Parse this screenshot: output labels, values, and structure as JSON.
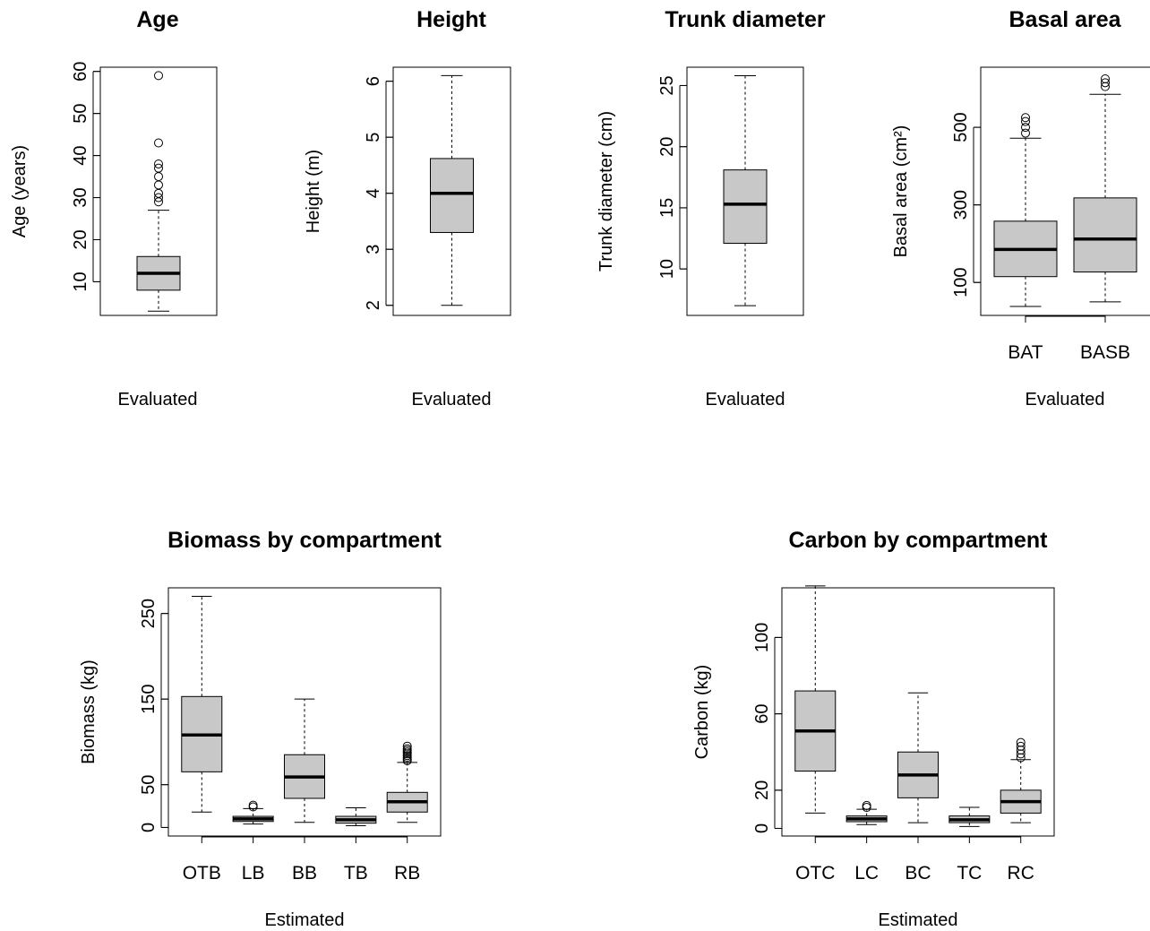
{
  "chart_data": [
    {
      "type": "box",
      "title": "Age",
      "ylabel": "Age (years)",
      "xlabel": "Evaluated",
      "ylim": [
        2,
        61
      ],
      "yticks": [
        10,
        20,
        30,
        40,
        50,
        60
      ],
      "categories": [
        ""
      ],
      "boxes": [
        {
          "min": 3,
          "q1": 8,
          "median": 12,
          "q3": 16,
          "max": 27,
          "outliers": [
            29,
            30,
            31,
            33,
            35,
            37,
            38,
            43,
            59
          ]
        }
      ]
    },
    {
      "type": "box",
      "title": "Height",
      "ylabel": "Height (m)",
      "xlabel": "Evaluated",
      "ylim": [
        1.82,
        6.25
      ],
      "yticks": [
        2,
        3,
        4,
        5,
        6
      ],
      "categories": [
        ""
      ],
      "boxes": [
        {
          "min": 2.0,
          "q1": 3.3,
          "median": 4.0,
          "q3": 4.62,
          "max": 6.1,
          "outliers": []
        }
      ]
    },
    {
      "type": "box",
      "title": "Trunk diameter",
      "ylabel": "Trunk diameter (cm)",
      "xlabel": "Evaluated",
      "ylim": [
        6.2,
        26.5
      ],
      "yticks": [
        10,
        15,
        20,
        25
      ],
      "categories": [
        ""
      ],
      "boxes": [
        {
          "min": 7.0,
          "q1": 12.1,
          "median": 15.3,
          "q3": 18.1,
          "max": 25.8,
          "outliers": []
        }
      ]
    },
    {
      "type": "box",
      "title": "Basal area",
      "ylabel": "Basal area (cm²)",
      "xlabel": "Evaluated",
      "ylim": [
        15,
        655
      ],
      "yticks": [
        100,
        300,
        500
      ],
      "categories": [
        "BAT",
        "BASB"
      ],
      "boxes": [
        {
          "min": 38,
          "q1": 115,
          "median": 185,
          "q3": 258,
          "max": 472,
          "outliers": [
            485,
            500,
            515,
            525
          ]
        },
        {
          "min": 50,
          "q1": 127,
          "median": 212,
          "q3": 318,
          "max": 585,
          "outliers": [
            605,
            615,
            625
          ]
        }
      ]
    },
    {
      "type": "box",
      "title": "Biomass by compartment",
      "ylabel": "Biomass (kg)",
      "xlabel": "Estimated",
      "ylim": [
        -10,
        280
      ],
      "yticks": [
        0,
        50,
        150,
        250
      ],
      "categories": [
        "OTB",
        "LB",
        "BB",
        "TB",
        "RB"
      ],
      "boxes": [
        {
          "min": 18,
          "q1": 65,
          "median": 108,
          "q3": 153,
          "max": 270,
          "outliers": []
        },
        {
          "min": 4,
          "q1": 7,
          "median": 10,
          "q3": 13,
          "max": 22,
          "outliers": [
            24,
            26
          ]
        },
        {
          "min": 6,
          "q1": 34,
          "median": 59,
          "q3": 85,
          "max": 150,
          "outliers": []
        },
        {
          "min": 2,
          "q1": 5,
          "median": 9,
          "q3": 13,
          "max": 23,
          "outliers": []
        },
        {
          "min": 6,
          "q1": 18,
          "median": 30,
          "q3": 41,
          "max": 76,
          "outliers": [
            78,
            80,
            82,
            84,
            86,
            88,
            90,
            92,
            95
          ]
        }
      ]
    },
    {
      "type": "box",
      "title": "Carbon by compartment",
      "ylabel": "Carbon (kg)",
      "xlabel": "Estimated",
      "ylim": [
        -4,
        126
      ],
      "yticks": [
        0,
        20,
        60,
        100
      ],
      "categories": [
        "OTC",
        "LC",
        "BC",
        "TC",
        "RC"
      ],
      "boxes": [
        {
          "min": 8,
          "q1": 30,
          "median": 51,
          "q3": 72,
          "max": 127,
          "outliers": []
        },
        {
          "min": 2,
          "q1": 3.5,
          "median": 5,
          "q3": 6.5,
          "max": 10,
          "outliers": [
            11,
            12
          ]
        },
        {
          "min": 3,
          "q1": 16,
          "median": 28,
          "q3": 40,
          "max": 71,
          "outliers": []
        },
        {
          "min": 1,
          "q1": 3,
          "median": 4.5,
          "q3": 6.5,
          "max": 11,
          "outliers": []
        },
        {
          "min": 3,
          "q1": 8,
          "median": 14,
          "q3": 20,
          "max": 36,
          "outliers": [
            37,
            39,
            41,
            43,
            45
          ]
        }
      ]
    }
  ]
}
